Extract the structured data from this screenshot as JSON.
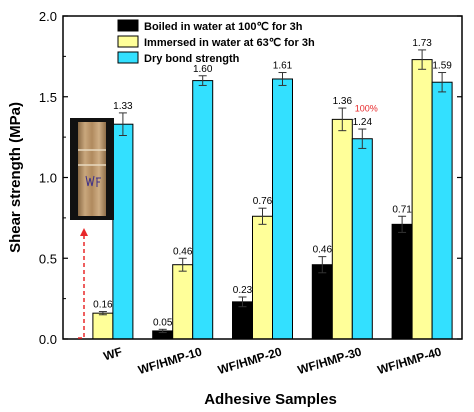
{
  "chart_data": {
    "type": "bar",
    "xlabel": "Adhesive Samples",
    "ylabel": "Shear strength (MPa)",
    "ylim": [
      0,
      2.0
    ],
    "yticks": [
      "0.0",
      "0.5",
      "1.0",
      "1.5",
      "2.0"
    ],
    "categories": [
      "WF",
      "WF/HMP-10",
      "WF/HMP-20",
      "WF/HMP-30",
      "WF/HMP-40"
    ],
    "legend_position": "top-right",
    "series": [
      {
        "name": "Boiled in water at 100℃ for 3h",
        "color": "#000000",
        "values": [
          0,
          0.05,
          0.23,
          0.46,
          0.71
        ],
        "errors": [
          0,
          0.01,
          0.03,
          0.05,
          0.05
        ],
        "labels": [
          "",
          "0.05",
          "0.23",
          "0.46",
          "0.71"
        ]
      },
      {
        "name": "Immersed in water at 63℃ for 3h",
        "color": "#ffff99",
        "values": [
          0.16,
          0.46,
          0.76,
          1.36,
          1.73
        ],
        "errors": [
          0.01,
          0.04,
          0.05,
          0.07,
          0.06
        ],
        "labels": [
          "0.16",
          "0.46",
          "0.76",
          "1.36",
          "1.73"
        ]
      },
      {
        "name": "Dry bond strength",
        "color": "#33e0ff",
        "values": [
          1.33,
          1.6,
          1.61,
          1.24,
          1.59
        ],
        "errors": [
          0.07,
          0.03,
          0.04,
          0.06,
          0.06
        ],
        "labels": [
          "1.33",
          "1.60",
          "1.61",
          "1.24",
          "1.59"
        ]
      }
    ],
    "annotation": {
      "text": "100%",
      "color": "#e8282a"
    },
    "inset_photo": {
      "description_icon": "wood-specimen-photo",
      "handwriting": "WF"
    }
  }
}
